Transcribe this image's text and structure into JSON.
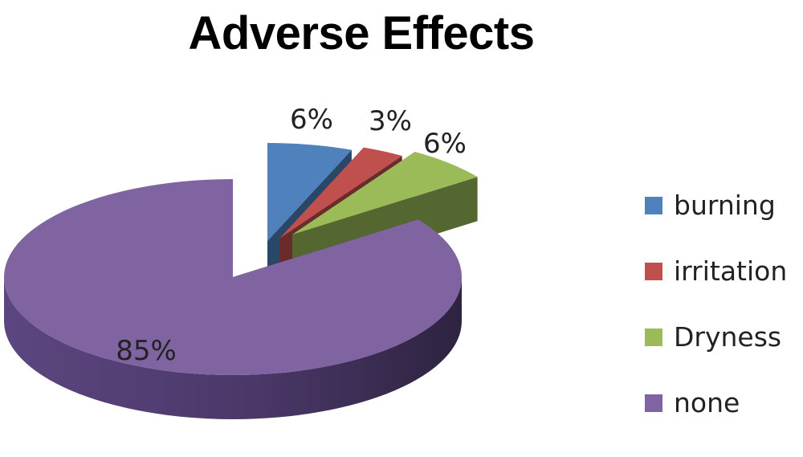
{
  "chart_data": {
    "type": "pie",
    "title": "Adverse Effects",
    "categories": [
      "burning",
      "irritation",
      "Dryness",
      "none"
    ],
    "values": [
      6,
      3,
      6,
      85
    ],
    "labels": [
      "6%",
      "3%",
      "6%",
      "85%"
    ],
    "colors": [
      "#4f81bd",
      "#c0504d",
      "#9bbb59",
      "#8064a2"
    ],
    "legend_position": "right",
    "style": "3d-exploded"
  }
}
